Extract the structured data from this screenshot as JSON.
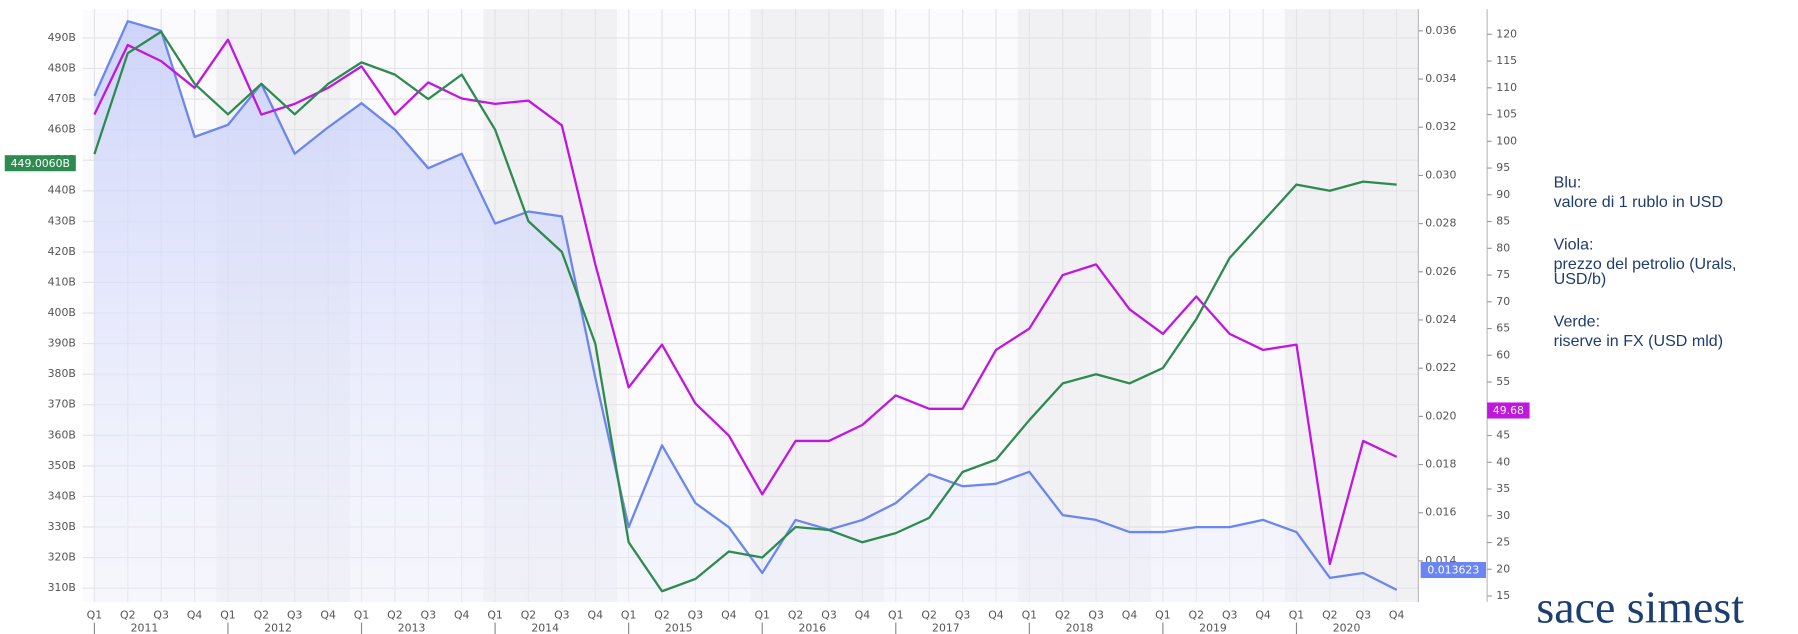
{
  "chart_data": {
    "type": "line",
    "categories": [
      "Q1",
      "Q2",
      "Q3",
      "Q4",
      "Q1",
      "Q2",
      "Q3",
      "Q4",
      "Q1",
      "Q2",
      "Q3",
      "Q4",
      "Q1",
      "Q2",
      "Q3",
      "Q4",
      "Q1",
      "Q2",
      "Q3",
      "Q4",
      "Q1",
      "Q2",
      "Q3",
      "Q4",
      "Q1",
      "Q2",
      "Q3",
      "Q4",
      "Q1",
      "Q2",
      "Q3",
      "Q4",
      "Q1",
      "Q2",
      "Q3",
      "Q4",
      "Q1",
      "Q2",
      "Q3",
      "Q4"
    ],
    "year_labels": [
      "2011",
      "2012",
      "2013",
      "2014",
      "2015",
      "2016",
      "2017",
      "2018",
      "2019",
      "2020"
    ],
    "ylim": [
      305.5,
      499.4
    ],
    "yticks": [
      {
        "value": 310,
        "label": "310B"
      },
      {
        "value": 320,
        "label": "320B"
      },
      {
        "value": 330,
        "label": "330B"
      },
      {
        "value": 340,
        "label": "340B"
      },
      {
        "value": 350,
        "label": "350B"
      },
      {
        "value": 360,
        "label": "360B"
      },
      {
        "value": 370,
        "label": "370B"
      },
      {
        "value": 380,
        "label": "380B"
      },
      {
        "value": 390,
        "label": "390B"
      },
      {
        "value": 400,
        "label": "400B"
      },
      {
        "value": 410,
        "label": "410B"
      },
      {
        "value": 420,
        "label": "420B"
      },
      {
        "value": 430,
        "label": "430B"
      },
      {
        "value": 440,
        "label": "440B"
      },
      {
        "value": 450,
        "label": "450B"
      },
      {
        "value": 460,
        "label": "460B"
      },
      {
        "value": 470,
        "label": "470B"
      },
      {
        "value": 480,
        "label": "480B"
      },
      {
        "value": 490,
        "label": "490B"
      }
    ],
    "y2lim": [
      0.0123,
      0.0369
    ],
    "y2ticks": [
      0.014,
      0.016,
      0.018,
      {
        "value": 0.02,
        "label": "0.020"
      },
      0.022,
      0.024,
      0.026,
      0.028,
      {
        "value": 0.03,
        "label": "0.030"
      },
      0.032,
      0.034,
      0.036
    ],
    "y3lim": [
      13.9,
      124.7
    ],
    "y3ticks": [
      15,
      20,
      25,
      30,
      35,
      40,
      45,
      50,
      55,
      60,
      65,
      70,
      75,
      80,
      85,
      90,
      95,
      100,
      105,
      110,
      115,
      120
    ],
    "grid": true,
    "series": [
      {
        "axis": "y2",
        "color": "#6b86f0",
        "fill": "#dfe3fb",
        "values": [
          0.0333,
          0.0364,
          0.036,
          0.0316,
          0.0321,
          0.0338,
          0.0309,
          0.032,
          0.033,
          0.0319,
          0.0303,
          0.0309,
          0.028,
          0.0285,
          0.0283,
          0.0216,
          0.0154,
          0.0188,
          0.0164,
          0.0154,
          0.0135,
          0.0157,
          0.0153,
          0.0157,
          0.0164,
          0.0176,
          0.0171,
          0.0172,
          0.0177,
          0.0159,
          0.0157,
          0.0152,
          0.0152,
          0.0154,
          0.0154,
          0.0157,
          0.0152,
          0.0133,
          0.0135,
          0.0128
        ],
        "last": {
          "value": 0.013623,
          "label": "0.013623"
        }
      },
      {
        "axis": "y3",
        "color": "#c016e0",
        "values": [
          105,
          118,
          115,
          110,
          119,
          105,
          107,
          110,
          114,
          105,
          111,
          108,
          107,
          107.6,
          103,
          77,
          54,
          62,
          51,
          45,
          34,
          44,
          44,
          47,
          52.5,
          50,
          50,
          61,
          65,
          75,
          77,
          68.6,
          64,
          71,
          64,
          61,
          62,
          21,
          44,
          41
        ],
        "last": {
          "value": 49.68,
          "label": "49.68"
        }
      },
      {
        "axis": "y",
        "color": "#2e8b4f",
        "values": [
          452,
          485,
          492,
          475,
          465,
          475,
          465,
          475,
          482,
          478,
          470,
          478,
          460,
          430,
          420,
          390,
          325,
          309,
          313,
          322,
          320,
          330,
          329,
          325,
          328,
          333,
          348,
          352,
          365,
          377,
          380,
          377,
          382,
          398,
          418,
          430,
          442,
          440,
          443,
          442
        ],
        "last": {
          "value": 449.006,
          "label": "449.0060B"
        }
      }
    ],
    "annotations": [
      {
        "title": "Blu:",
        "lines": [
          "valore di 1 rublo in USD"
        ]
      },
      {
        "title": "Viola:",
        "lines": [
          "prezzo del petrolio (Urals,",
          "USD/b)"
        ]
      },
      {
        "title": "Verde:",
        "lines": [
          "riserve in FX (USD mld)"
        ]
      }
    ],
    "logo": "sace simest"
  }
}
